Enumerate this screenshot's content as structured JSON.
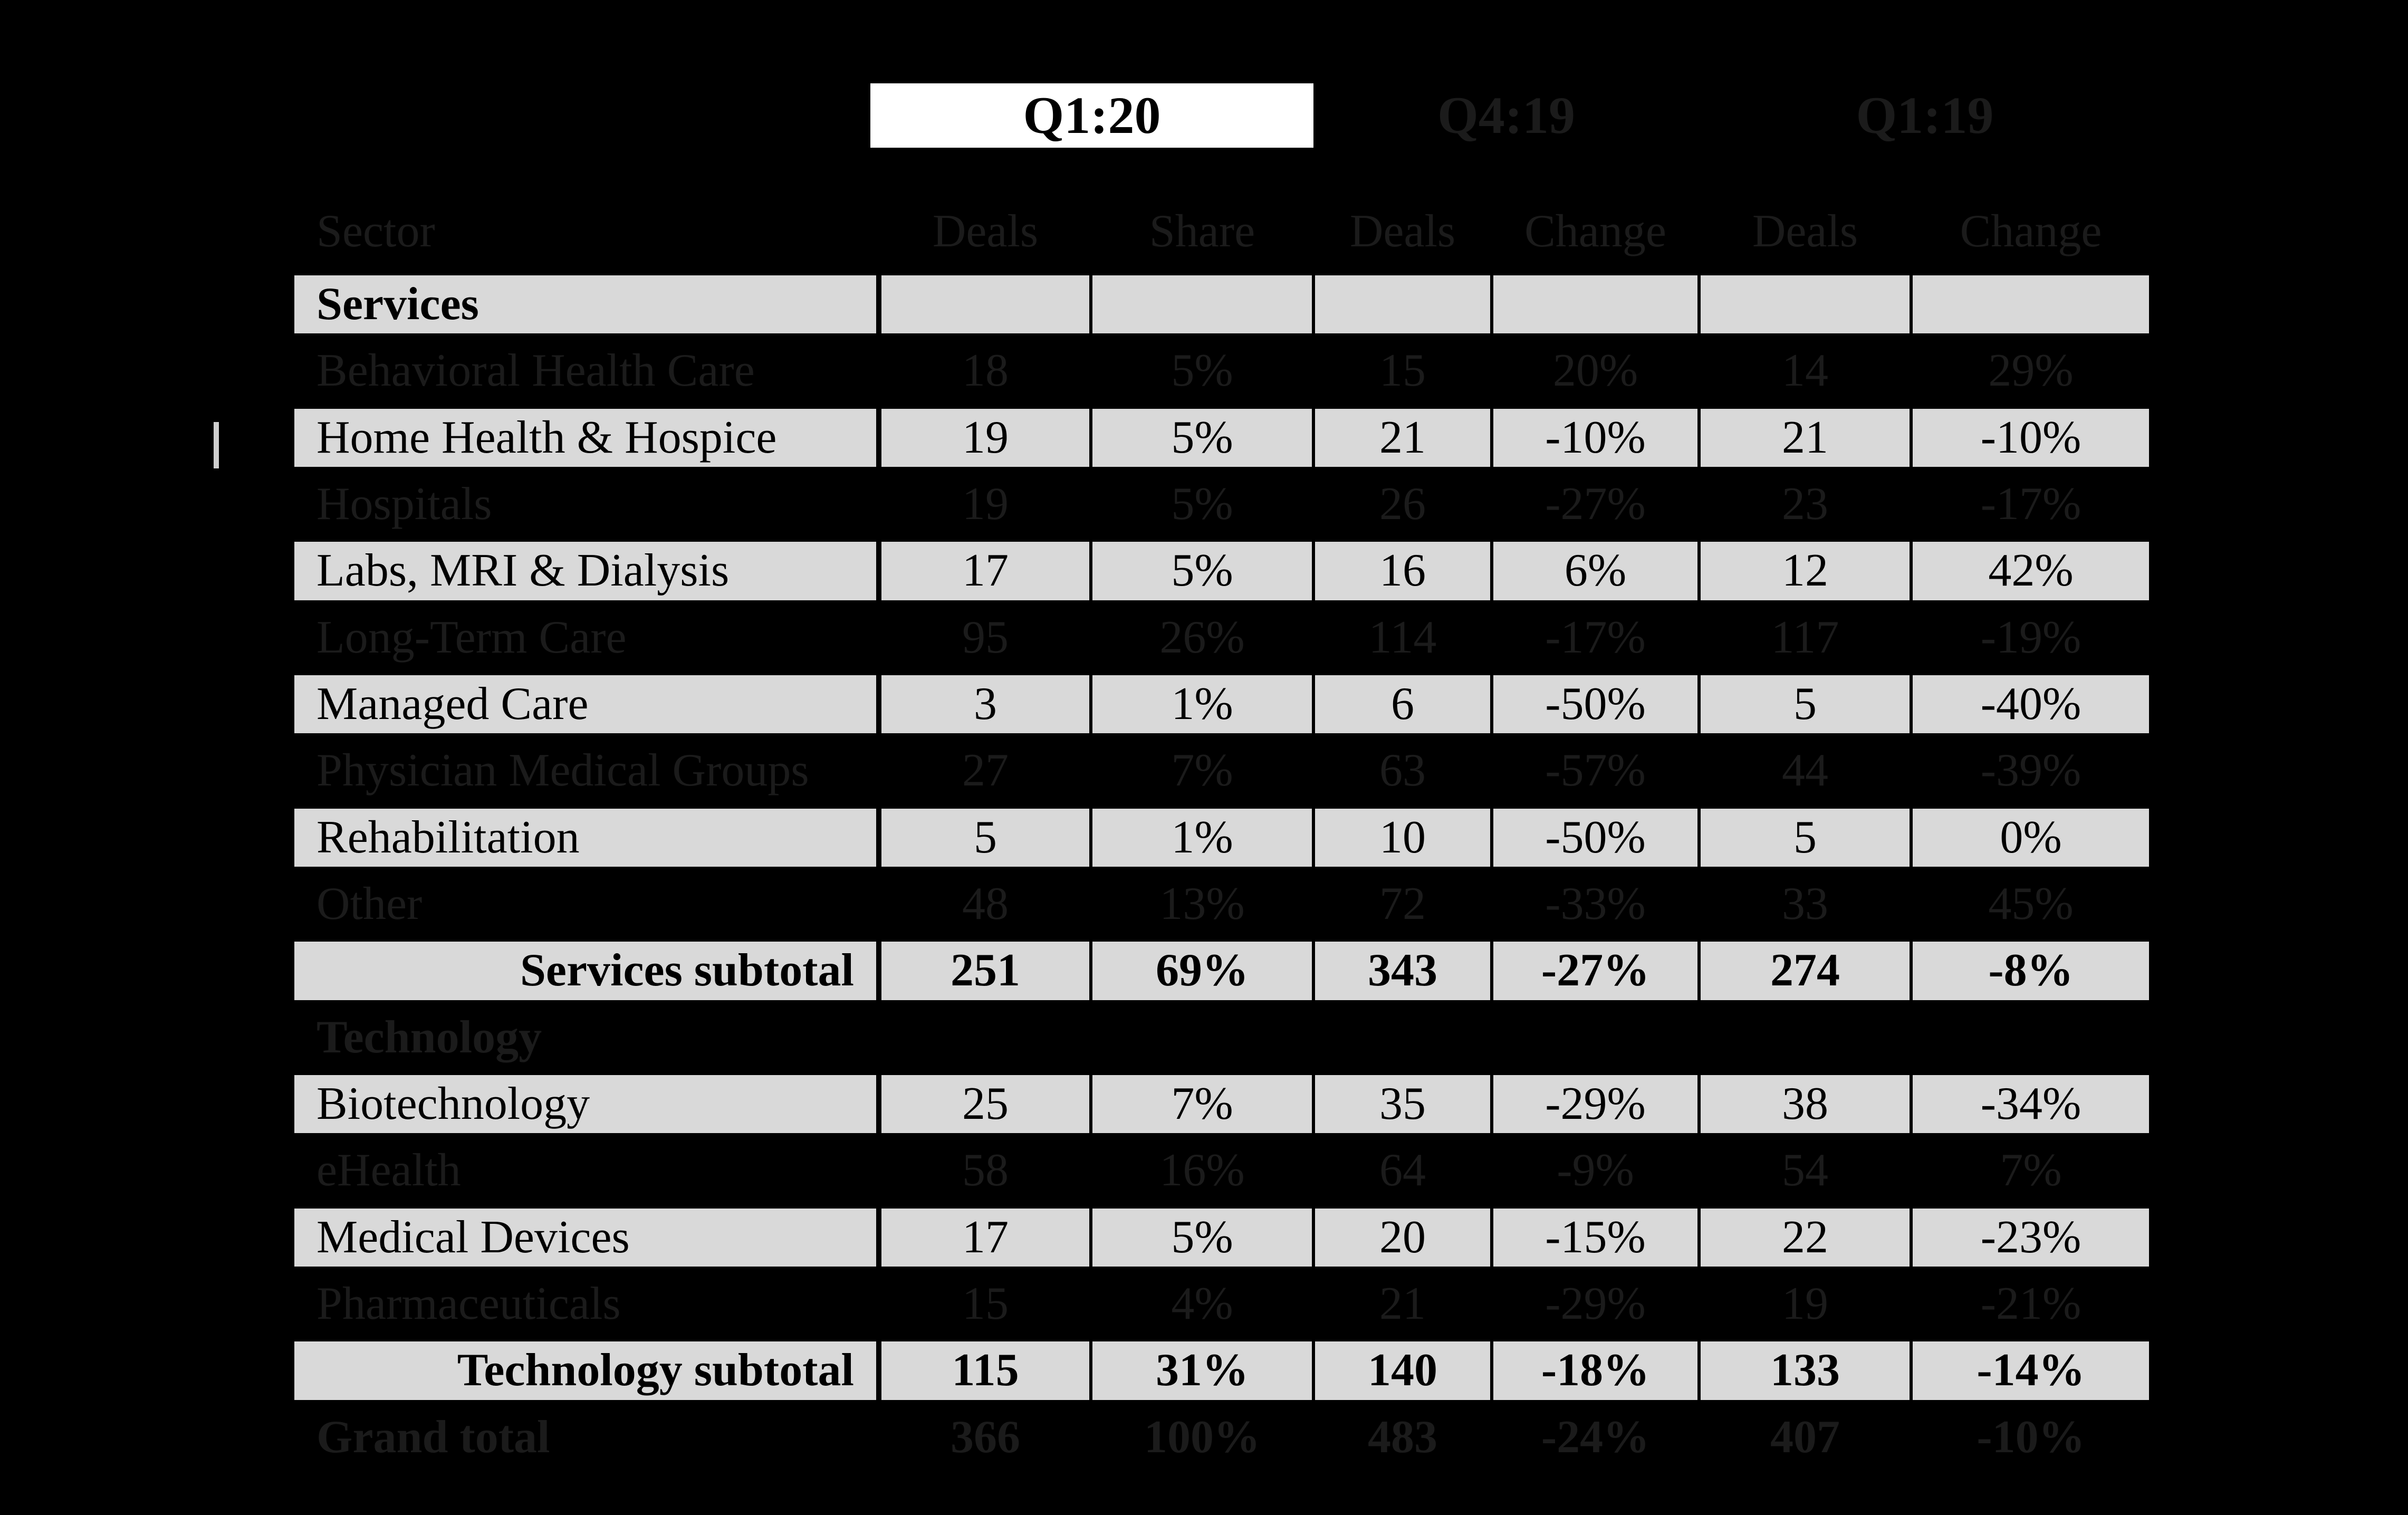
{
  "periods": [
    {
      "label": "Q1:20",
      "highlighted": true
    },
    {
      "label": "Q4:19",
      "highlighted": false
    },
    {
      "label": "Q1:19",
      "highlighted": false
    }
  ],
  "columns": [
    {
      "label": "Sector"
    },
    {
      "label": "Deals"
    },
    {
      "label": "Share"
    },
    {
      "label": "Deals"
    },
    {
      "label": "Change"
    },
    {
      "label": "Deals"
    },
    {
      "label": "Change"
    }
  ],
  "rows": [
    {
      "sector": "Services",
      "style": "section",
      "dimmed": false,
      "values": [
        "",
        "",
        "",
        "",
        "",
        ""
      ]
    },
    {
      "sector": "Behavioral Health Care",
      "style": "data",
      "dimmed": true,
      "values": [
        "18",
        "5%",
        "15",
        "20%",
        "14",
        "29%"
      ]
    },
    {
      "sector": "Home Health & Hospice",
      "style": "data",
      "dimmed": false,
      "values": [
        "19",
        "5%",
        "21",
        "-10%",
        "21",
        "-10%"
      ]
    },
    {
      "sector": "Hospitals",
      "style": "data",
      "dimmed": true,
      "values": [
        "19",
        "5%",
        "26",
        "-27%",
        "23",
        "-17%"
      ]
    },
    {
      "sector": "Labs, MRI & Dialysis",
      "style": "data",
      "dimmed": false,
      "values": [
        "17",
        "5%",
        "16",
        "6%",
        "12",
        "42%"
      ]
    },
    {
      "sector": "Long-Term Care",
      "style": "data",
      "dimmed": true,
      "values": [
        "95",
        "26%",
        "114",
        "-17%",
        "117",
        "-19%"
      ]
    },
    {
      "sector": "Managed Care",
      "style": "data",
      "dimmed": false,
      "values": [
        "3",
        "1%",
        "6",
        "-50%",
        "5",
        "-40%"
      ]
    },
    {
      "sector": "Physician Medical Groups",
      "style": "data",
      "dimmed": true,
      "values": [
        "27",
        "7%",
        "63",
        "-57%",
        "44",
        "-39%"
      ]
    },
    {
      "sector": "Rehabilitation",
      "style": "data",
      "dimmed": false,
      "values": [
        "5",
        "1%",
        "10",
        "-50%",
        "5",
        "0%"
      ]
    },
    {
      "sector": "Other",
      "style": "data",
      "dimmed": true,
      "values": [
        "48",
        "13%",
        "72",
        "-33%",
        "33",
        "45%"
      ]
    },
    {
      "sector": "Services subtotal",
      "style": "subtotal",
      "dimmed": false,
      "values": [
        "251",
        "69%",
        "343",
        "-27%",
        "274",
        "-8%"
      ]
    },
    {
      "sector": "Technology",
      "style": "section",
      "dimmed": true,
      "values": [
        "",
        "",
        "",
        "",
        "",
        ""
      ]
    },
    {
      "sector": "Biotechnology",
      "style": "data",
      "dimmed": false,
      "values": [
        "25",
        "7%",
        "35",
        "-29%",
        "38",
        "-34%"
      ]
    },
    {
      "sector": "eHealth",
      "style": "data",
      "dimmed": true,
      "values": [
        "58",
        "16%",
        "64",
        "-9%",
        "54",
        "7%"
      ]
    },
    {
      "sector": "Medical Devices",
      "style": "data",
      "dimmed": false,
      "values": [
        "17",
        "5%",
        "20",
        "-15%",
        "22",
        "-23%"
      ]
    },
    {
      "sector": "Pharmaceuticals",
      "style": "data",
      "dimmed": true,
      "values": [
        "15",
        "4%",
        "21",
        "-29%",
        "19",
        "-21%"
      ]
    },
    {
      "sector": "Technology subtotal",
      "style": "subtotal",
      "dimmed": false,
      "values": [
        "115",
        "31%",
        "140",
        "-18%",
        "133",
        "-14%"
      ]
    },
    {
      "sector": "Grand total",
      "style": "total",
      "dimmed": true,
      "values": [
        "366",
        "100%",
        "483",
        "-24%",
        "407",
        "-10%"
      ]
    }
  ],
  "colors": {
    "background": "#000000",
    "row_highlight_bg": "#d9d9d9",
    "row_highlight_text": "#000000",
    "dimmed_text": "#1b1b1b",
    "period_highlight_bg": "#ffffff"
  },
  "chart_data": {
    "type": "table",
    "period_groups": [
      "Q1:20",
      "Q4:19",
      "Q1:19"
    ],
    "columns": [
      "Sector",
      "Deals",
      "Share",
      "Deals",
      "Change",
      "Deals",
      "Change"
    ],
    "rows": [
      [
        "Services",
        "",
        "",
        "",
        "",
        "",
        ""
      ],
      [
        "Behavioral Health Care",
        18,
        "5%",
        15,
        "20%",
        14,
        "29%"
      ],
      [
        "Home Health & Hospice",
        19,
        "5%",
        21,
        "-10%",
        21,
        "-10%"
      ],
      [
        "Hospitals",
        19,
        "5%",
        26,
        "-27%",
        23,
        "-17%"
      ],
      [
        "Labs, MRI & Dialysis",
        17,
        "5%",
        16,
        "6%",
        12,
        "42%"
      ],
      [
        "Long-Term Care",
        95,
        "26%",
        114,
        "-17%",
        117,
        "-19%"
      ],
      [
        "Managed Care",
        3,
        "1%",
        6,
        "-50%",
        5,
        "-40%"
      ],
      [
        "Physician Medical Groups",
        27,
        "7%",
        63,
        "-57%",
        44,
        "-39%"
      ],
      [
        "Rehabilitation",
        5,
        "1%",
        10,
        "-50%",
        5,
        "0%"
      ],
      [
        "Other",
        48,
        "13%",
        72,
        "-33%",
        33,
        "45%"
      ],
      [
        "Services subtotal",
        251,
        "69%",
        343,
        "-27%",
        274,
        "-8%"
      ],
      [
        "Technology",
        "",
        "",
        "",
        "",
        "",
        ""
      ],
      [
        "Biotechnology",
        25,
        "7%",
        35,
        "-29%",
        38,
        "-34%"
      ],
      [
        "eHealth",
        58,
        "16%",
        64,
        "-9%",
        54,
        "7%"
      ],
      [
        "Medical Devices",
        17,
        "5%",
        20,
        "-15%",
        22,
        "-23%"
      ],
      [
        "Pharmaceuticals",
        15,
        "4%",
        21,
        "-29%",
        19,
        "-21%"
      ],
      [
        "Technology subtotal",
        115,
        "31%",
        140,
        "-18%",
        133,
        "-14%"
      ],
      [
        "Grand total",
        366,
        "100%",
        483,
        "-24%",
        407,
        "-10%"
      ]
    ]
  }
}
